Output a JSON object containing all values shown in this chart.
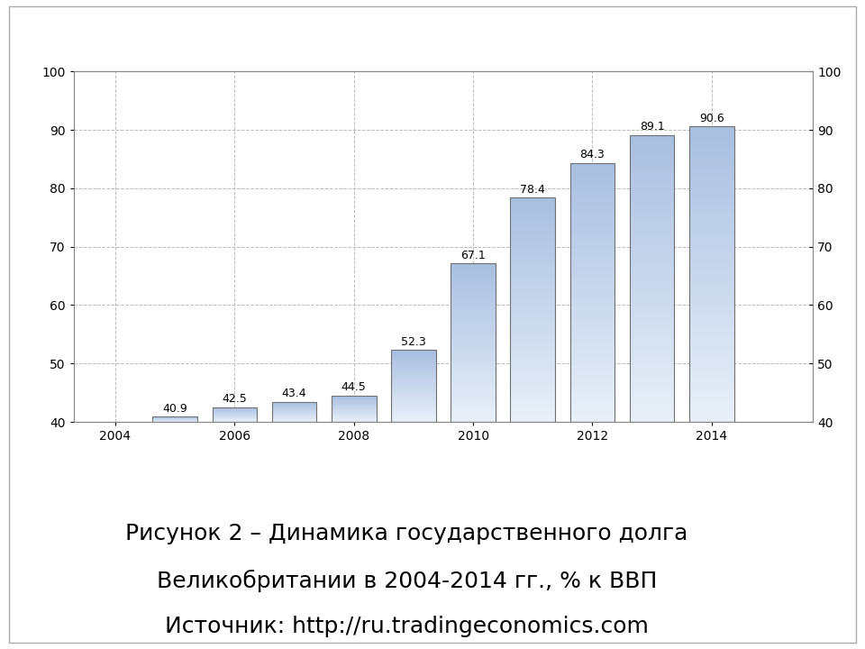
{
  "years": [
    2005,
    2006,
    2007,
    2008,
    2009,
    2010,
    2011,
    2012,
    2013,
    2014
  ],
  "values": [
    40.9,
    42.5,
    43.4,
    44.5,
    52.3,
    67.1,
    78.4,
    84.3,
    89.1,
    90.6
  ],
  "x_ticks": [
    2004,
    2006,
    2008,
    2010,
    2012,
    2014
  ],
  "ylim": [
    40,
    100
  ],
  "yticks": [
    40,
    50,
    60,
    70,
    80,
    90,
    100
  ],
  "bar_color_top": "#a8bee0",
  "bar_color_bottom": "#e8eff8",
  "bar_edge_color": "#707070",
  "background_color": "#ffffff",
  "grid_color": "#bbbbbb",
  "caption_line1": "Рисунок 2 – Динамика государственного долга",
  "caption_line2": "Великобритании в 2004-2014 гг., % к ВВП",
  "caption_line3": "Источник: http://ru.tradingeconomics.com",
  "caption_fontsize": 18,
  "label_fontsize": 9,
  "tick_fontsize": 10,
  "fig_border_color": "#aaaaaa",
  "outer_bg": "#ffffff"
}
